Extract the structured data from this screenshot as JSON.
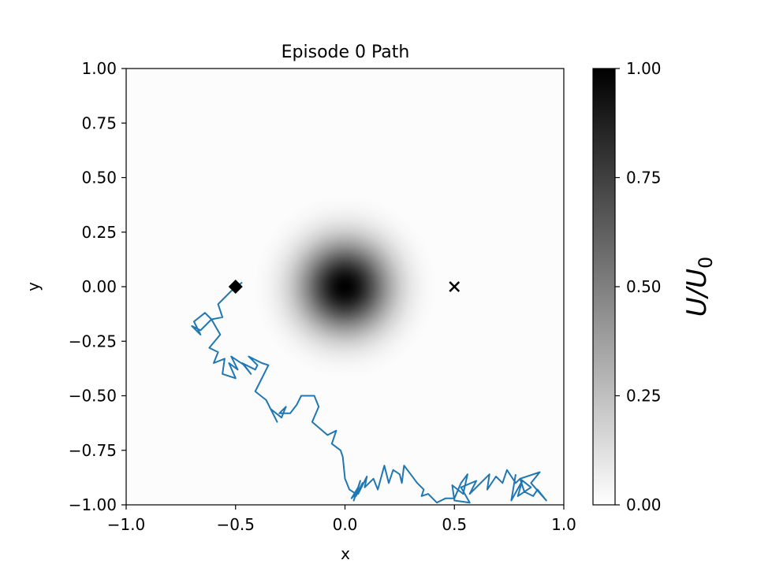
{
  "chart_data": {
    "type": "heatmap",
    "title": "Episode 0 Path",
    "xlabel": "x",
    "ylabel": "y",
    "xlim": [
      -1.0,
      1.0
    ],
    "ylim": [
      -1.0,
      1.0
    ],
    "xticks": [
      "−1.0",
      "−0.5",
      "0.0",
      "0.5",
      "1.0"
    ],
    "xtick_values": [
      -1.0,
      -0.5,
      0.0,
      0.5,
      1.0
    ],
    "yticks": [
      "1.00",
      "0.75",
      "0.50",
      "0.25",
      "0.00",
      "−0.25",
      "−0.50",
      "−0.75",
      "−1.00"
    ],
    "ytick_values": [
      1.0,
      0.75,
      0.5,
      0.25,
      0.0,
      -0.25,
      -0.5,
      -0.75,
      -1.0
    ],
    "grid": false,
    "field": {
      "name": "U/U0",
      "colormap": "gray_r",
      "center": [
        0.0,
        0.0
      ],
      "peak": 1.0,
      "sigma": 0.14
    },
    "colorbar": {
      "label": "U/U0",
      "range": [
        0.0,
        1.0
      ],
      "ticks": [
        "0.00",
        "0.25",
        "0.50",
        "0.75",
        "1.00"
      ],
      "tick_values": [
        0.0,
        0.25,
        0.5,
        0.75,
        1.0
      ]
    },
    "start_marker": {
      "shape": "diamond",
      "x": -0.5,
      "y": 0.0,
      "color": "#000000"
    },
    "goal_marker": {
      "shape": "x",
      "x": 0.5,
      "y": 0.0,
      "color": "#000000"
    },
    "path": {
      "color": "#1f77b4",
      "x": [
        -0.47,
        -0.52,
        -0.58,
        -0.56,
        -0.61,
        -0.64,
        -0.69,
        -0.66,
        -0.7,
        -0.66,
        -0.61,
        -0.57,
        -0.62,
        -0.58,
        -0.6,
        -0.55,
        -0.56,
        -0.5,
        -0.53,
        -0.49,
        -0.52,
        -0.46,
        -0.43,
        -0.47,
        -0.41,
        -0.4,
        -0.44,
        -0.38,
        -0.35,
        -0.41,
        -0.36,
        -0.33,
        -0.31,
        -0.34,
        -0.29,
        -0.27,
        -0.3,
        -0.25,
        -0.22,
        -0.2,
        -0.14,
        -0.12,
        -0.15,
        -0.08,
        -0.04,
        -0.06,
        -0.02,
        -0.01,
        0.0,
        0.02,
        0.05,
        0.03,
        0.06,
        0.04,
        0.07,
        0.05,
        0.08,
        0.06,
        0.1,
        0.09,
        0.13,
        0.15,
        0.18,
        0.2,
        0.22,
        0.25,
        0.26,
        0.27,
        0.3,
        0.33,
        0.36,
        0.35,
        0.38,
        0.42,
        0.46,
        0.5,
        0.53,
        0.56,
        0.54,
        0.49,
        0.5,
        0.57,
        0.53,
        0.6,
        0.57,
        0.62,
        0.66,
        0.65,
        0.69,
        0.72,
        0.74,
        0.78,
        0.8,
        0.82,
        0.86,
        0.88,
        0.92,
        0.85,
        0.89,
        0.8,
        0.85,
        0.79,
        0.81,
        0.76,
        0.78
      ],
      "y": [
        0.02,
        -0.02,
        -0.08,
        -0.14,
        -0.15,
        -0.12,
        -0.16,
        -0.22,
        -0.18,
        -0.2,
        -0.15,
        -0.22,
        -0.28,
        -0.3,
        -0.35,
        -0.33,
        -0.4,
        -0.42,
        -0.35,
        -0.38,
        -0.32,
        -0.36,
        -0.4,
        -0.35,
        -0.38,
        -0.36,
        -0.32,
        -0.35,
        -0.36,
        -0.48,
        -0.52,
        -0.58,
        -0.62,
        -0.56,
        -0.6,
        -0.55,
        -0.58,
        -0.58,
        -0.54,
        -0.5,
        -0.5,
        -0.55,
        -0.62,
        -0.68,
        -0.66,
        -0.72,
        -0.75,
        -0.78,
        -0.88,
        -0.93,
        -0.95,
        -0.97,
        -0.92,
        -0.98,
        -0.89,
        -0.96,
        -0.9,
        -0.95,
        -0.87,
        -0.92,
        -0.88,
        -0.93,
        -0.82,
        -0.9,
        -0.84,
        -0.86,
        -0.9,
        -0.82,
        -0.86,
        -0.9,
        -0.93,
        -0.96,
        -0.95,
        -0.99,
        -0.97,
        -0.97,
        -0.9,
        -0.86,
        -0.95,
        -0.91,
        -0.98,
        -0.99,
        -0.92,
        -0.89,
        -0.95,
        -0.9,
        -0.86,
        -0.93,
        -0.87,
        -0.9,
        -0.84,
        -0.9,
        -0.88,
        -0.94,
        -0.96,
        -0.93,
        -0.98,
        -0.9,
        -0.85,
        -0.88,
        -0.92,
        -0.96,
        -0.89,
        -0.98,
        -0.86
      ]
    }
  }
}
